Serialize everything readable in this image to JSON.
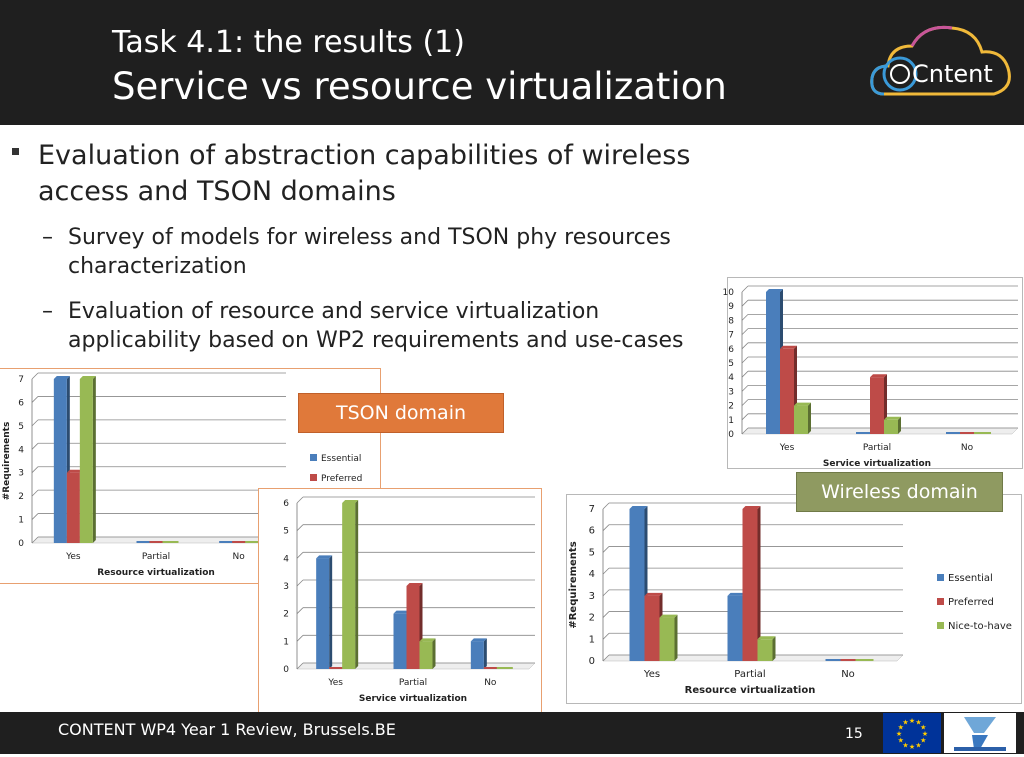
{
  "header": {
    "title_line1": "Task 4.1: the results (1)",
    "title_line2": "Service vs resource virtualization",
    "logo_text": "Cntent",
    "logo_icon": "content-cloud-logo"
  },
  "bullets": {
    "main": "Evaluation of abstraction capabilities of wireless access and TSON domains",
    "sub1": "Survey of models for wireless and TSON phy resources characterization",
    "sub2": "Evaluation of resource and service virtualization applicability based on WP2 requirements and use-cases",
    "dash": "–"
  },
  "labels": {
    "tson_domain": "TSON domain",
    "wireless_domain": "Wireless domain"
  },
  "colors": {
    "essential": "#4a7ebb",
    "preferred": "#be4b48",
    "nice": "#98b954",
    "tson_tag": "#e0793a",
    "wireless_tag": "#8f9a61"
  },
  "chart_data": [
    {
      "id": "tson-resource",
      "type": "bar",
      "categories": [
        "Yes",
        "Partial",
        "No"
      ],
      "series": [
        {
          "name": "Essential",
          "values": [
            7,
            0,
            0
          ]
        },
        {
          "name": "Preferred",
          "values": [
            3,
            0,
            0
          ]
        },
        {
          "name": "Nice-to-have",
          "values": [
            7,
            0,
            0
          ]
        }
      ],
      "xlabel": "Resource virtualization",
      "ylabel": "#Requirements",
      "ylim": [
        0,
        7
      ],
      "yticks": [
        "0",
        "1",
        "2",
        "3",
        "4",
        "5",
        "6",
        "7"
      ],
      "legend": [
        "Essential",
        "Preferred"
      ]
    },
    {
      "id": "tson-service",
      "type": "bar",
      "categories": [
        "Yes",
        "Partial",
        "No"
      ],
      "series": [
        {
          "name": "Essential",
          "values": [
            4,
            2,
            1
          ]
        },
        {
          "name": "Preferred",
          "values": [
            0,
            3,
            0
          ]
        },
        {
          "name": "Nice-to-have",
          "values": [
            6,
            1,
            0
          ]
        }
      ],
      "xlabel": "Service virtualization",
      "ylabel": "",
      "ylim": [
        0,
        6
      ],
      "yticks": [
        "0",
        "1",
        "2",
        "3",
        "4",
        "5",
        "6"
      ]
    },
    {
      "id": "wireless-service",
      "type": "bar",
      "categories": [
        "Yes",
        "Partial",
        "No"
      ],
      "series": [
        {
          "name": "Essential",
          "values": [
            10,
            0,
            0
          ]
        },
        {
          "name": "Preferred",
          "values": [
            6,
            4,
            0
          ]
        },
        {
          "name": "Nice-to-have",
          "values": [
            2,
            1,
            0
          ]
        }
      ],
      "xlabel": "Service virtualization",
      "ylabel": "",
      "ylim": [
        0,
        10
      ],
      "yticks": [
        "0",
        "1",
        "2",
        "3",
        "4",
        "5",
        "6",
        "7",
        "8",
        "9",
        "10"
      ]
    },
    {
      "id": "wireless-resource",
      "type": "bar",
      "categories": [
        "Yes",
        "Partial",
        "No"
      ],
      "series": [
        {
          "name": "Essential",
          "values": [
            7,
            3,
            0
          ]
        },
        {
          "name": "Preferred",
          "values": [
            3,
            7,
            0
          ]
        },
        {
          "name": "Nice-to-have",
          "values": [
            2,
            1,
            0
          ]
        }
      ],
      "xlabel": "Resource virtualization",
      "ylabel": "#Requirements",
      "ylim": [
        0,
        7
      ],
      "yticks": [
        "0",
        "1",
        "2",
        "3",
        "4",
        "5",
        "6",
        "7"
      ],
      "legend": [
        "Essential",
        "Preferred",
        "Nice-to-have"
      ]
    }
  ],
  "footer": {
    "text": "CONTENT WP4 Year 1 Review, Brussels.BE",
    "page": "15",
    "eu_icon": "eu-flag-icon",
    "fp7_icon": "seventh-framework-programme-logo"
  }
}
